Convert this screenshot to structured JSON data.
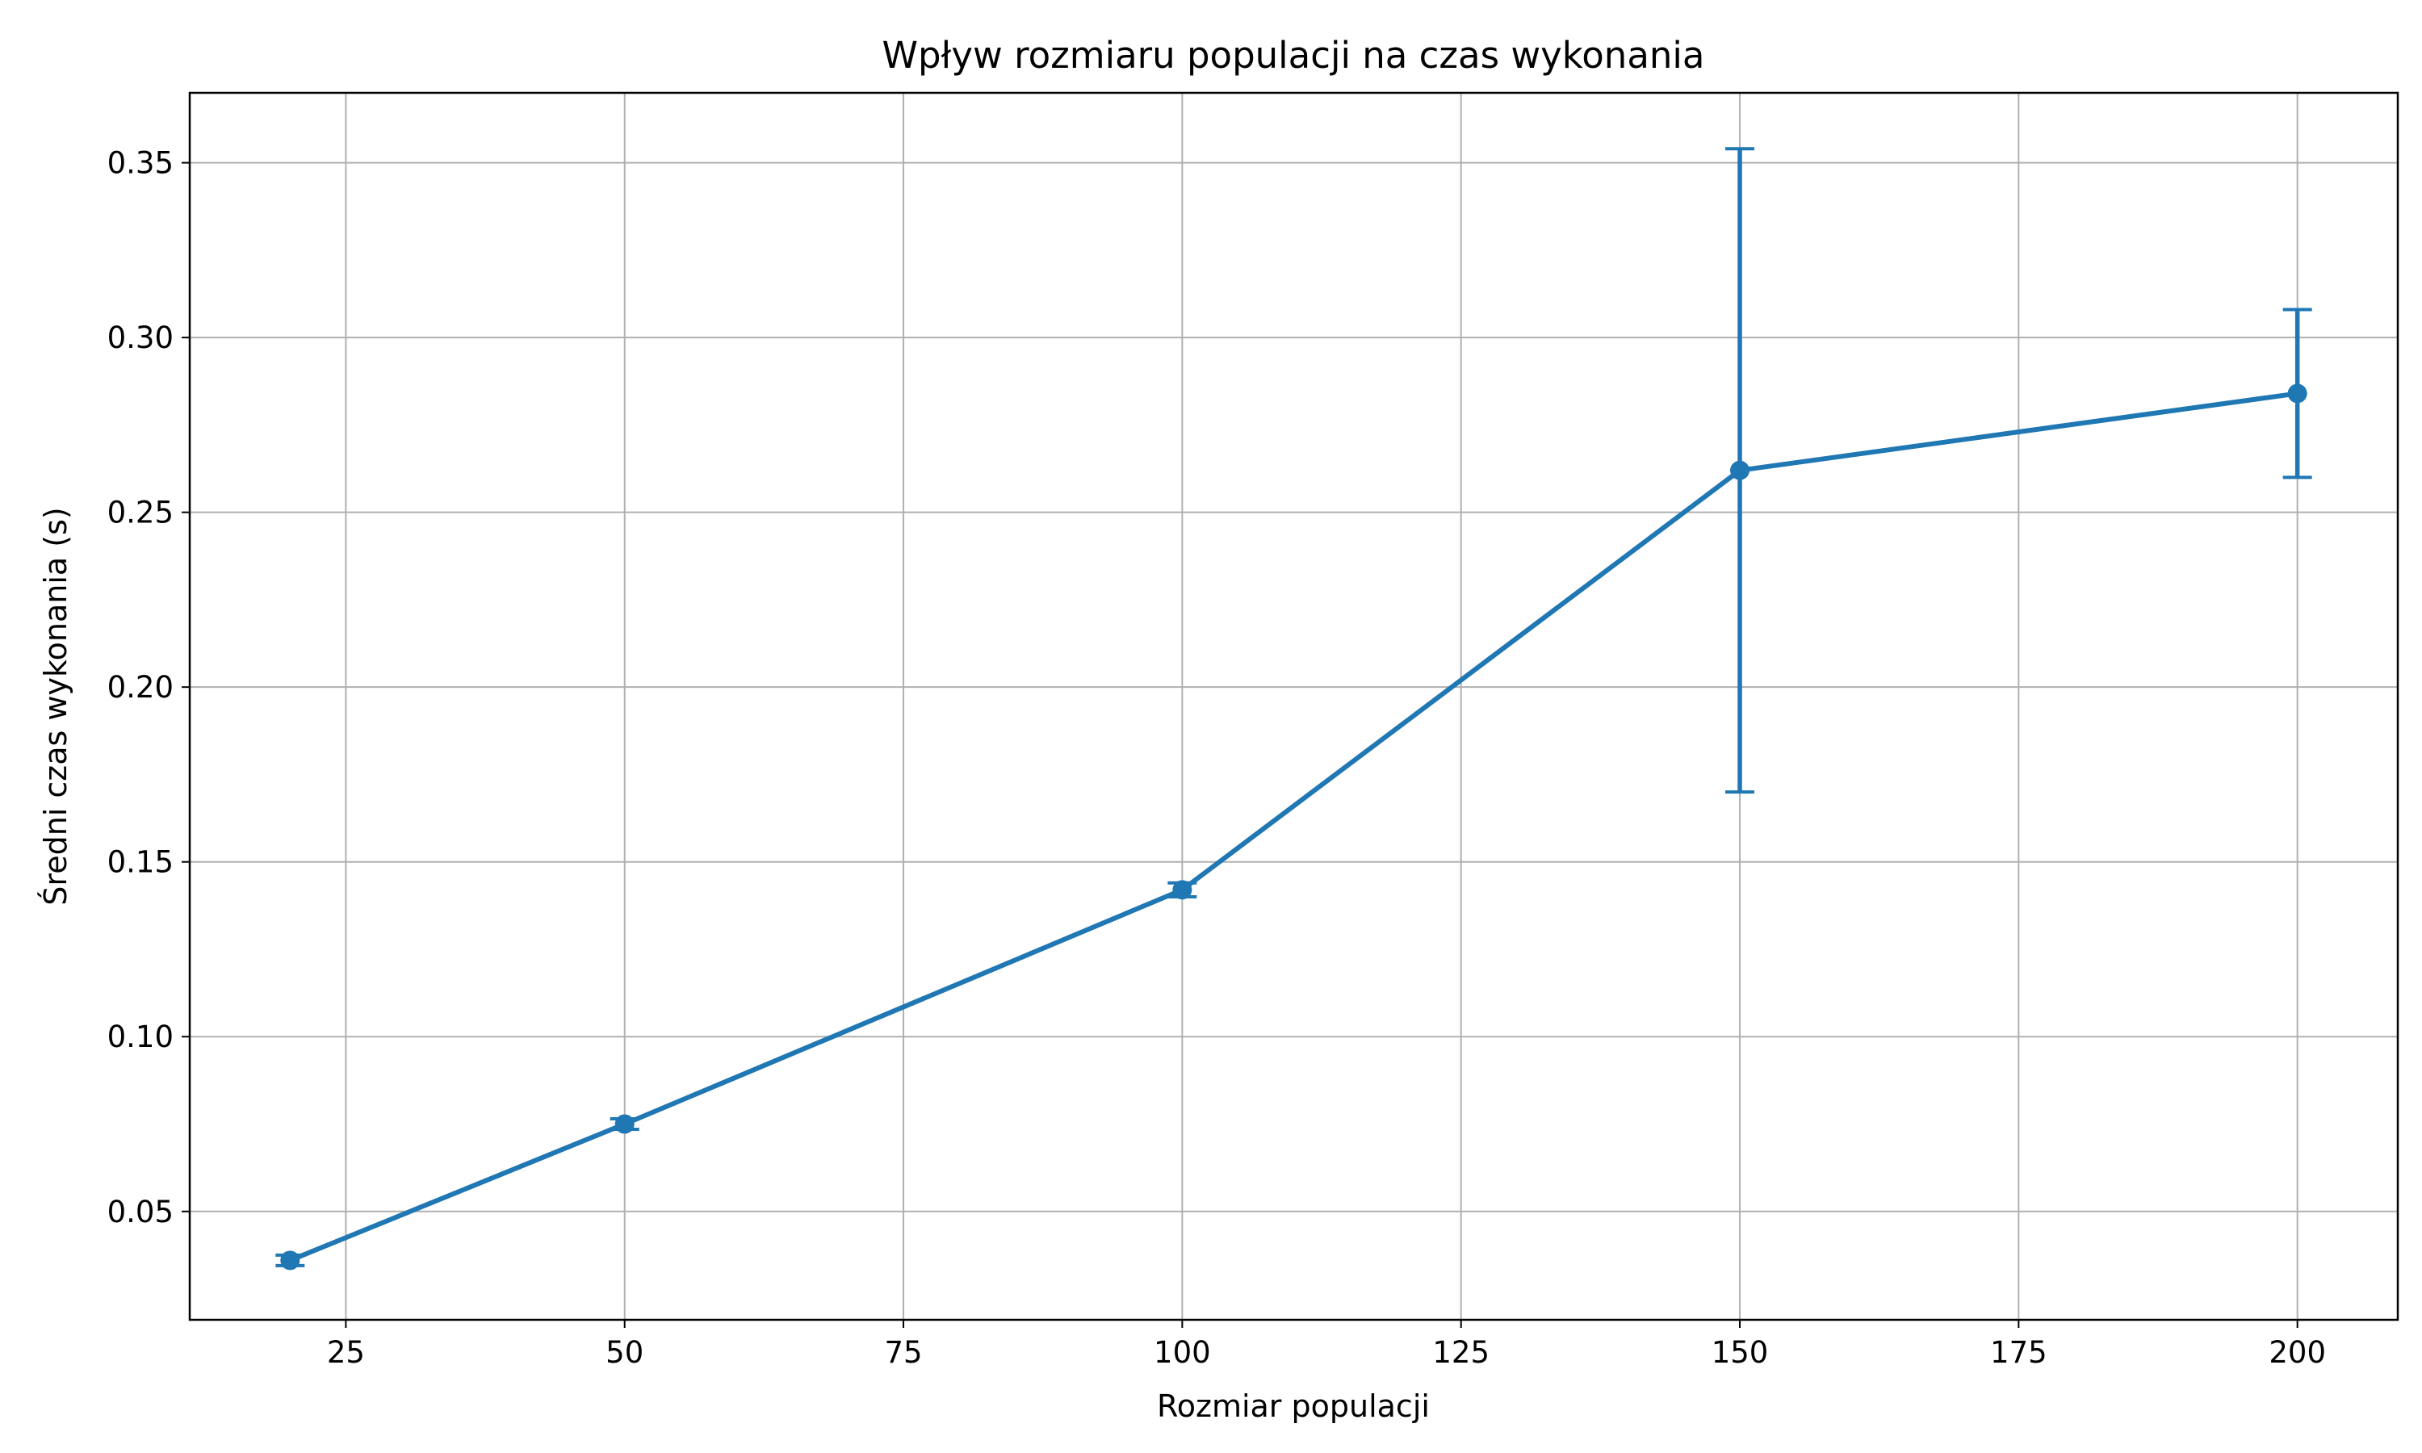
{
  "chart_data": {
    "type": "line",
    "title": "Wpływ rozmiaru populacji na czas wykonania",
    "xlabel": "Rozmiar populacji",
    "ylabel": "Średni czas wykonania (s)",
    "xlim": [
      11.0,
      209.0
    ],
    "ylim": [
      0.019,
      0.37
    ],
    "xticks": [
      25,
      50,
      75,
      100,
      125,
      150,
      175,
      200
    ],
    "xtick_labels": [
      "25",
      "50",
      "75",
      "100",
      "125",
      "150",
      "175",
      "200"
    ],
    "yticks": [
      0.05,
      0.1,
      0.15,
      0.2,
      0.25,
      0.3,
      0.35
    ],
    "ytick_labels": [
      "0.05",
      "0.10",
      "0.15",
      "0.20",
      "0.25",
      "0.30",
      "0.35"
    ],
    "grid": true,
    "series": [
      {
        "color": "#1f77b4",
        "x": [
          20,
          50,
          100,
          150,
          200
        ],
        "y": [
          0.036,
          0.075,
          0.142,
          0.262,
          0.284
        ],
        "error": [
          0.0015,
          0.0015,
          0.002,
          0.092,
          0.024
        ]
      }
    ]
  }
}
